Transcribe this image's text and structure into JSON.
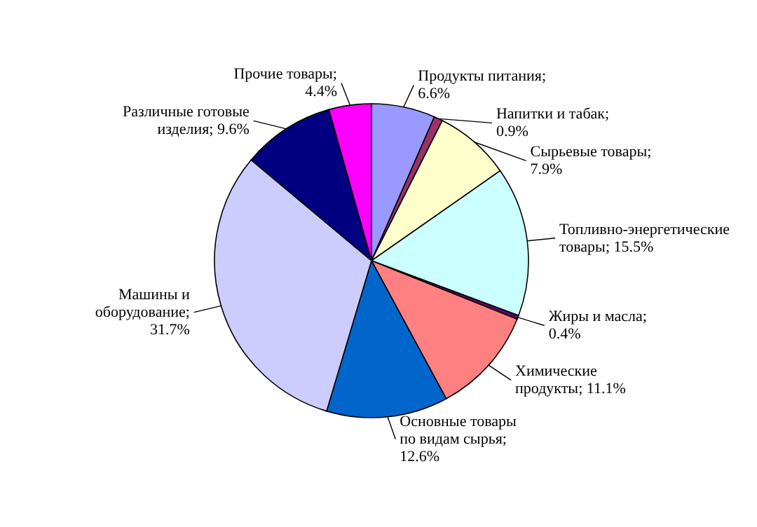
{
  "chart_data": {
    "type": "pie",
    "categories": [
      "Продукты питания",
      "Напитки и табак",
      "Сырьевые товары",
      "Топливно-энергетические товары",
      "Жиры и масла",
      "Химические продукты",
      "Основные товары по видам сырья",
      "Машины и оборудование",
      "Различные готовые изделия",
      "Прочие товары"
    ],
    "values": [
      6.6,
      0.9,
      7.9,
      15.5,
      0.4,
      11.1,
      12.6,
      31.7,
      9.6,
      4.4
    ],
    "value_labels": [
      "; 6.6%",
      "; 0.9%",
      "; 7.9%",
      "; 15.5%",
      "; 0.4%",
      "; 11.1%",
      "; 12.6%",
      "; 31.7%",
      "; 9.6%",
      "; 4.4%"
    ],
    "colors": [
      "#9999ff",
      "#993366",
      "#ffffcc",
      "#ccffff",
      "#660066",
      "#ff8080",
      "#0066cc",
      "#ccccff",
      "#000080",
      "#ff00ff"
    ]
  }
}
